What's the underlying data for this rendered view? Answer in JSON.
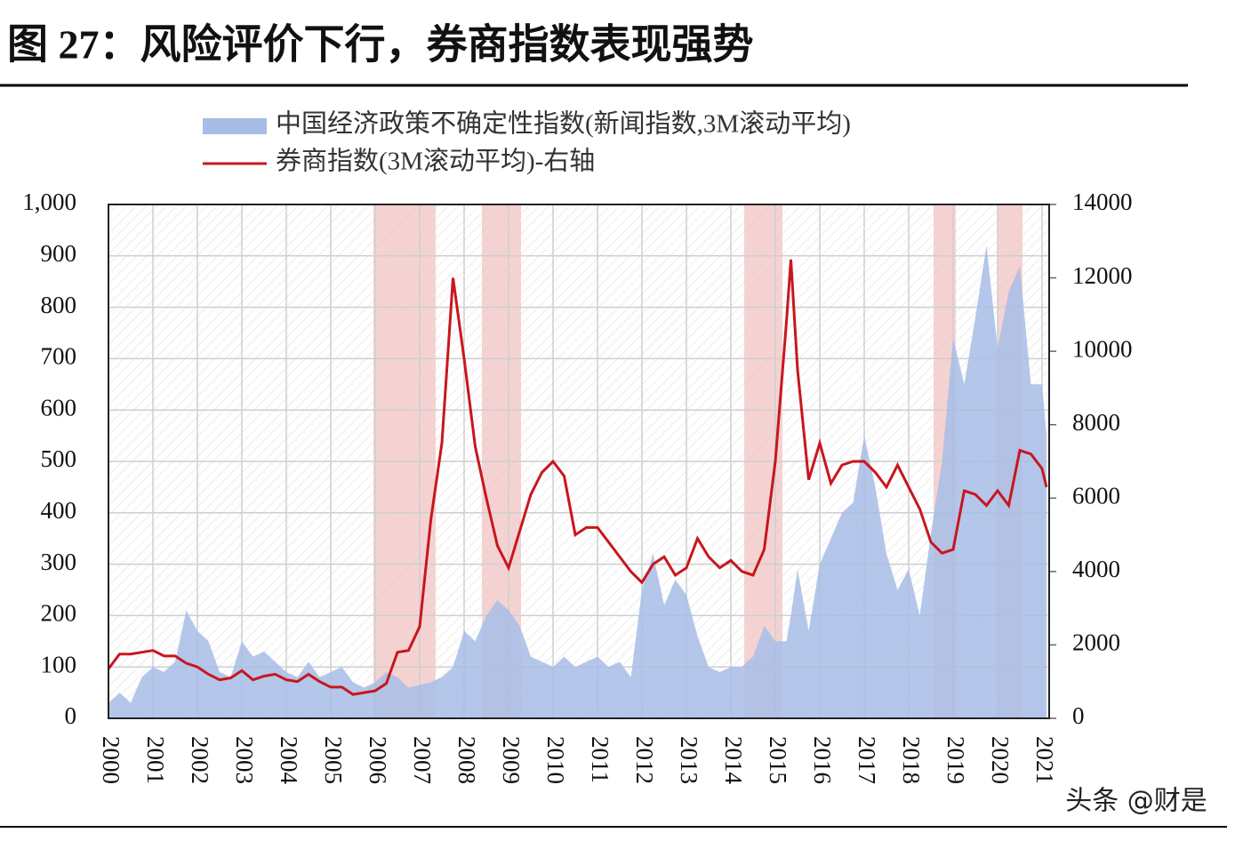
{
  "chart_data": {
    "type": "area-line",
    "title": "图 27：风险评价下行，券商指数表现强势",
    "watermark": "头条 @财是",
    "x": [
      2000,
      2000.25,
      2000.5,
      2000.75,
      2001,
      2001.25,
      2001.5,
      2001.75,
      2002,
      2002.25,
      2002.5,
      2002.75,
      2003,
      2003.25,
      2003.5,
      2003.75,
      2004,
      2004.25,
      2004.5,
      2004.75,
      2005,
      2005.25,
      2005.5,
      2005.75,
      2006,
      2006.25,
      2006.5,
      2006.75,
      2007,
      2007.25,
      2007.5,
      2007.75,
      2008,
      2008.25,
      2008.5,
      2008.75,
      2009,
      2009.25,
      2009.5,
      2009.75,
      2010,
      2010.25,
      2010.5,
      2010.75,
      2011,
      2011.25,
      2011.5,
      2011.75,
      2012,
      2012.25,
      2012.5,
      2012.75,
      2013,
      2013.25,
      2013.5,
      2013.75,
      2014,
      2014.25,
      2014.5,
      2014.75,
      2015,
      2015.25,
      2015.35,
      2015.5,
      2015.75,
      2016,
      2016.25,
      2016.5,
      2016.75,
      2017,
      2017.25,
      2017.5,
      2017.75,
      2018,
      2018.25,
      2018.5,
      2018.75,
      2019,
      2019.25,
      2019.5,
      2019.75,
      2020,
      2020.25,
      2020.5,
      2020.75,
      2021,
      2021.1
    ],
    "series": [
      {
        "name": "中国经济政策不确定性指数(新闻指数,3M滚动平均)",
        "color": "#a7bde6",
        "kind": "area",
        "values": [
          30,
          50,
          30,
          80,
          100,
          90,
          110,
          210,
          170,
          150,
          90,
          80,
          150,
          120,
          130,
          110,
          90,
          80,
          110,
          80,
          90,
          100,
          70,
          60,
          70,
          90,
          80,
          60,
          65,
          70,
          80,
          100,
          170,
          150,
          200,
          230,
          210,
          180,
          120,
          110,
          100,
          120,
          100,
          110,
          120,
          100,
          110,
          80,
          250,
          320,
          220,
          270,
          240,
          160,
          100,
          90,
          100,
          100,
          120,
          180,
          150,
          150,
          200,
          290,
          170,
          300,
          350,
          400,
          420,
          550,
          450,
          320,
          250,
          290,
          200,
          360,
          500,
          740,
          650,
          780,
          920,
          720,
          830,
          880,
          650,
          650,
          550
        ]
      },
      {
        "name": "券商指数(3M滚动平均)-右轴",
        "color": "#c8161d",
        "kind": "line",
        "axis": "y2",
        "values": [
          1350,
          1750,
          1750,
          1800,
          1850,
          1700,
          1700,
          1500,
          1400,
          1200,
          1050,
          1100,
          1300,
          1050,
          1150,
          1200,
          1050,
          1000,
          1200,
          1000,
          850,
          850,
          650,
          700,
          750,
          950,
          1800,
          1850,
          2500,
          5400,
          7500,
          12000,
          9800,
          7400,
          6000,
          4700,
          4100,
          5100,
          6100,
          6700,
          7000,
          6600,
          5000,
          5200,
          5200,
          4800,
          4400,
          4000,
          3700,
          4200,
          4400,
          3900,
          4100,
          4900,
          4400,
          4100,
          4300,
          4000,
          3900,
          4600,
          7000,
          10800,
          12500,
          9500,
          6500,
          7500,
          6400,
          6900,
          7000,
          7000,
          6700,
          6300,
          6900,
          6300,
          5700,
          4800,
          4500,
          4600,
          6200,
          6100,
          5800,
          6200,
          5800,
          7300,
          7200,
          6800,
          6300
        ]
      }
    ],
    "shaded_ranges": [
      [
        2005.96,
        2007.36
      ],
      [
        2008.4,
        2009.28
      ],
      [
        2014.3,
        2015.16
      ],
      [
        2018.56,
        2019.06
      ],
      [
        2020.0,
        2020.56
      ]
    ],
    "shade_color": "#f1c4c4",
    "xlim": [
      2000,
      2021.16
    ],
    "xticks": [
      2000,
      2001,
      2002,
      2003,
      2004,
      2005,
      2006,
      2007,
      2008,
      2009,
      2010,
      2011,
      2012,
      2013,
      2014,
      2015,
      2016,
      2017,
      2018,
      2019,
      2020,
      2021
    ],
    "ylim": [
      0,
      1000
    ],
    "yticks": [
      0,
      100,
      200,
      300,
      400,
      500,
      600,
      700,
      800,
      900,
      {
        "value": 1000,
        "label": "1,000"
      }
    ],
    "y2lim": [
      0,
      14000
    ],
    "y2ticks": [
      0,
      2000,
      4000,
      6000,
      8000,
      10000,
      12000,
      14000
    ],
    "grid": true
  }
}
